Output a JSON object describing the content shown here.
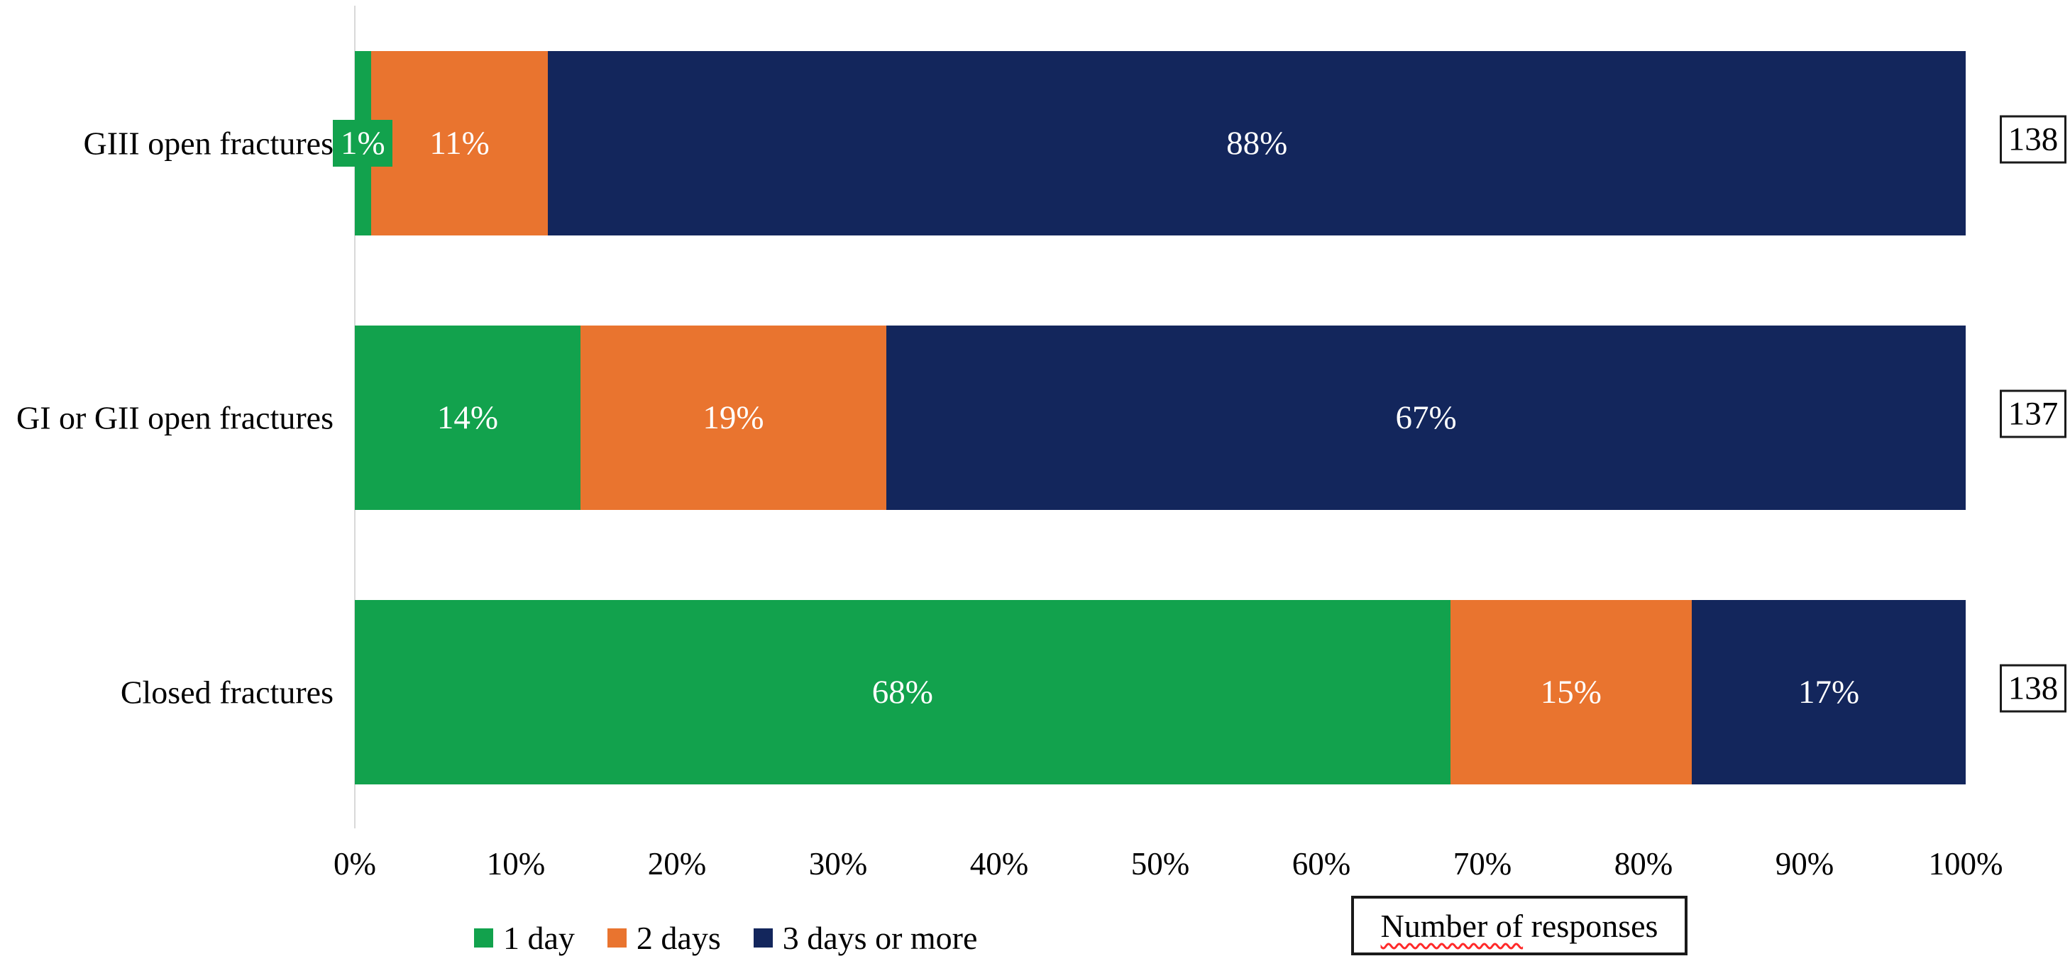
{
  "chart_data": {
    "type": "bar",
    "orientation": "horizontal",
    "stacked": true,
    "unit": "percent",
    "title": "",
    "categories": [
      "GIII open fractures",
      "GI or GII open fractures",
      "Closed fractures"
    ],
    "series": [
      {
        "name": "1 day",
        "color": "#12A24D",
        "values": [
          1,
          14,
          68
        ]
      },
      {
        "name": "2 days",
        "color": "#E9742F",
        "values": [
          11,
          19,
          15
        ]
      },
      {
        "name": "3 days or more",
        "color": "#13265C",
        "values": [
          88,
          67,
          17
        ]
      }
    ],
    "data_labels": [
      [
        "1%",
        "11%",
        "88%"
      ],
      [
        "14%",
        "19%",
        "67%"
      ],
      [
        "68%",
        "15%",
        "17%"
      ]
    ],
    "responses_per_category": [
      138,
      137,
      138
    ],
    "x_ticks": [
      "0%",
      "10%",
      "20%",
      "30%",
      "40%",
      "50%",
      "60%",
      "70%",
      "80%",
      "90%",
      "100%"
    ],
    "xlim": [
      0,
      100
    ],
    "grid": "single-vertical-axis-line-at-zero",
    "axis_line_color": "#D9D9D9",
    "legend_position": "bottom-left",
    "label_text_color": "#FFFFFF"
  },
  "annotation_box": {
    "text_underlined": "Number of",
    "text_rest": " responses"
  }
}
